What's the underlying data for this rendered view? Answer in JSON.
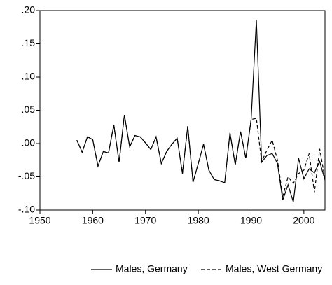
{
  "chart_data": {
    "type": "line",
    "x": [
      1957,
      1958,
      1959,
      1960,
      1961,
      1962,
      1963,
      1964,
      1965,
      1966,
      1967,
      1968,
      1969,
      1970,
      1971,
      1972,
      1973,
      1974,
      1975,
      1976,
      1977,
      1978,
      1979,
      1980,
      1981,
      1982,
      1983,
      1984,
      1985,
      1986,
      1987,
      1988,
      1989,
      1990,
      1991,
      1992,
      1993,
      1994,
      1995,
      1996,
      1997,
      1998,
      1999,
      2000,
      2001,
      2002,
      2003,
      2004
    ],
    "series": [
      {
        "name": "Males, Germany",
        "color": "#000000",
        "line_style": "solid",
        "values": [
          0.005,
          -0.013,
          0.01,
          0.006,
          -0.034,
          -0.012,
          -0.014,
          0.028,
          -0.028,
          0.043,
          -0.005,
          0.012,
          0.01,
          0.001,
          -0.009,
          0.01,
          -0.03,
          -0.012,
          -0.001,
          0.008,
          -0.045,
          0.026,
          -0.058,
          -0.03,
          -0.001,
          -0.04,
          -0.054,
          -0.056,
          -0.059,
          0.016,
          -0.032,
          0.018,
          -0.022,
          0.035,
          0.186,
          -0.028,
          -0.018,
          -0.015,
          -0.03,
          -0.085,
          -0.062,
          -0.088,
          -0.022,
          -0.053,
          -0.038,
          -0.044,
          -0.027,
          -0.055
        ]
      },
      {
        "name": "Males, West Germany",
        "color": "#000000",
        "line_style": "dashed",
        "values": [
          0.005,
          -0.013,
          0.01,
          0.006,
          -0.034,
          -0.012,
          -0.014,
          0.028,
          -0.028,
          0.043,
          -0.005,
          0.012,
          0.01,
          0.001,
          -0.009,
          0.01,
          -0.03,
          -0.012,
          -0.001,
          0.008,
          -0.045,
          0.026,
          -0.058,
          -0.03,
          -0.001,
          -0.04,
          -0.054,
          -0.056,
          -0.059,
          0.016,
          -0.032,
          0.018,
          -0.022,
          0.036,
          0.038,
          -0.027,
          -0.01,
          0.005,
          -0.025,
          -0.08,
          -0.05,
          -0.06,
          -0.045,
          -0.04,
          -0.015,
          -0.073,
          -0.008,
          -0.053
        ]
      }
    ],
    "xlim": [
      1950,
      2004
    ],
    "xticks": [
      1950,
      1960,
      1970,
      1980,
      1990,
      2000
    ],
    "ylim": [
      -0.1,
      0.2
    ],
    "yticks": [
      {
        "value": -0.1,
        "label": "-.10"
      },
      {
        "value": -0.05,
        "label": "-.05"
      },
      {
        "value": 0,
        "label": ".00"
      },
      {
        "value": 0.05,
        "label": ".05"
      },
      {
        "value": 0.1,
        "label": ".10"
      },
      {
        "value": 0.15,
        "label": ".15"
      },
      {
        "value": 0.2,
        "label": ".20"
      }
    ],
    "grid": false,
    "legend": "bottom"
  }
}
